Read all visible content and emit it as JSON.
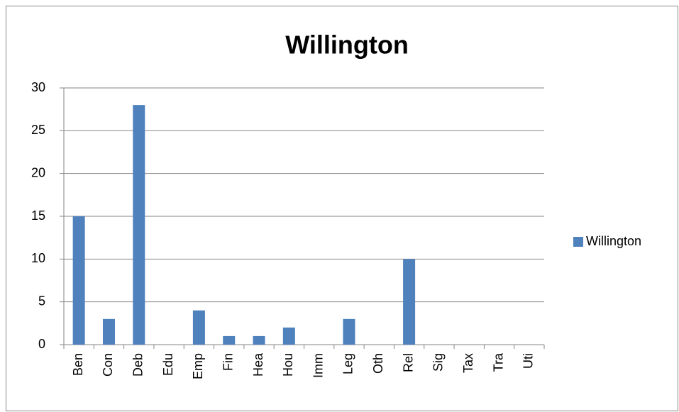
{
  "chart_data": {
    "type": "bar",
    "title": "Willington",
    "categories": [
      "Ben",
      "Con",
      "Deb",
      "Edu",
      "Emp",
      "Fin",
      "Hea",
      "Hou",
      "Imm",
      "Leg",
      "Oth",
      "Rel",
      "Sig",
      "Tax",
      "Tra",
      "Uti"
    ],
    "series": [
      {
        "name": "Willington",
        "color": "#4f81bd",
        "values": [
          15,
          3,
          28,
          0,
          4,
          1,
          1,
          2,
          0,
          3,
          0,
          10,
          0,
          0,
          0,
          0
        ]
      }
    ],
    "ylim": [
      0,
      30
    ],
    "yticks": [
      0,
      5,
      10,
      15,
      20,
      25,
      30
    ],
    "grid": true,
    "legend": "right"
  }
}
